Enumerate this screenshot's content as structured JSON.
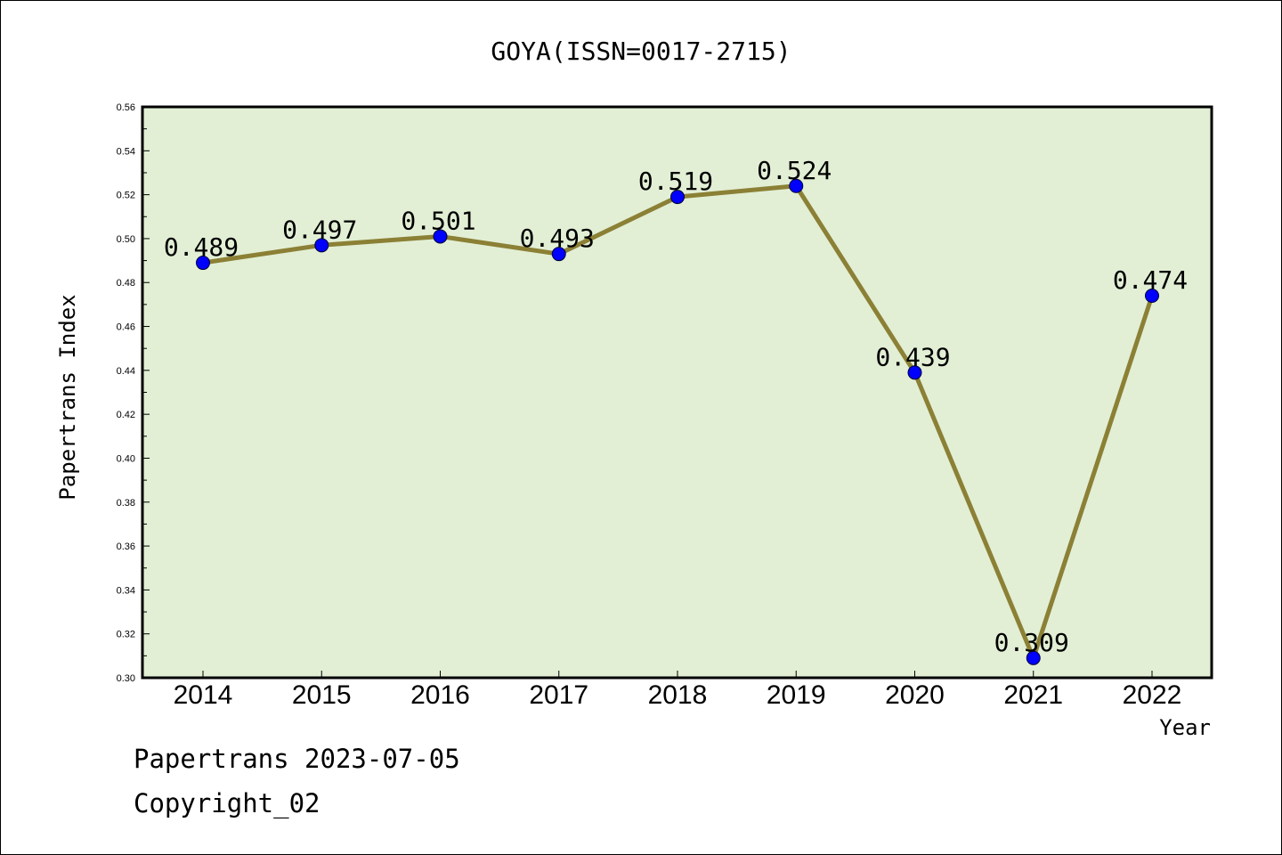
{
  "chart_data": {
    "type": "line",
    "title": "GOYA(ISSN=0017-2715)",
    "xlabel": "Year",
    "ylabel": "Papertrans Index",
    "categories": [
      "2014",
      "2015",
      "2016",
      "2017",
      "2018",
      "2019",
      "2020",
      "2021",
      "2022"
    ],
    "series": [
      {
        "values": [
          0.489,
          0.497,
          0.501,
          0.493,
          0.519,
          0.524,
          0.439,
          0.309,
          0.474
        ]
      }
    ],
    "data_labels": [
      "0.489",
      "0.497",
      "0.501",
      "0.493",
      "0.519",
      "0.524",
      "0.439",
      "0.309",
      "0.474"
    ],
    "ylim": [
      0.3,
      0.56
    ],
    "yticks": [
      "0.30",
      "0.32",
      "0.34",
      "0.36",
      "0.38",
      "0.40",
      "0.42",
      "0.44",
      "0.46",
      "0.48",
      "0.50",
      "0.52",
      "0.54",
      "0.56"
    ],
    "grid": false,
    "colors": {
      "line": "#8b8035",
      "marker": "#0000ff",
      "plot_background": "#e2efd5",
      "border": "#000000"
    }
  },
  "footer": {
    "line1": "Papertrans 2023-07-05",
    "line2": "Copyright_02"
  }
}
